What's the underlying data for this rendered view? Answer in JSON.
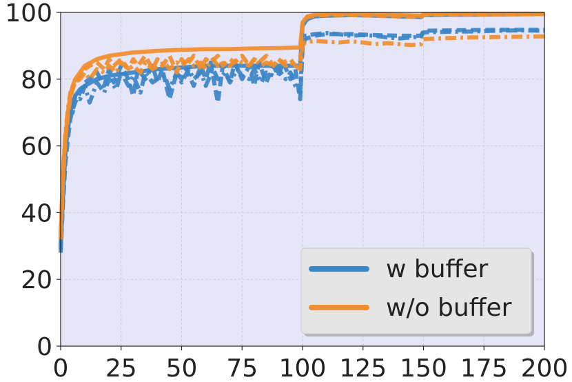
{
  "chart_data": {
    "type": "line",
    "title": "",
    "xlabel": "",
    "ylabel": "",
    "xlim": [
      0,
      200
    ],
    "ylim": [
      0,
      100
    ],
    "x_ticks": [
      "0",
      "25",
      "50",
      "75",
      "100",
      "125",
      "150",
      "175",
      "200"
    ],
    "y_ticks": [
      "0",
      "20",
      "40",
      "60",
      "80",
      "100"
    ],
    "grid": true,
    "legend_position": "lower-right",
    "colors": {
      "w_buffer": "#3b86c6",
      "wo_buffer": "#f28e2b",
      "plot_background": "#e6e6f8",
      "legend_background": "#e5e5e5"
    },
    "legend": [
      {
        "label": "w buffer",
        "color": "#3b86c6"
      },
      {
        "label": "w/o buffer",
        "color": "#f28e2b"
      }
    ],
    "series": [
      {
        "group": "w buffer",
        "style": "solid",
        "points": [
          [
            0,
            29
          ],
          [
            1,
            45
          ],
          [
            2,
            58
          ],
          [
            3,
            65
          ],
          [
            4,
            70
          ],
          [
            5,
            73
          ],
          [
            6,
            75
          ],
          [
            8,
            77
          ],
          [
            10,
            78
          ],
          [
            15,
            80
          ],
          [
            20,
            81
          ],
          [
            30,
            82
          ],
          [
            40,
            83
          ],
          [
            50,
            83.5
          ],
          [
            60,
            84
          ],
          [
            70,
            84
          ],
          [
            80,
            84
          ],
          [
            90,
            84
          ],
          [
            95,
            84
          ],
          [
            99,
            84
          ],
          [
            100,
            96
          ],
          [
            102,
            98
          ],
          [
            105,
            98.8
          ],
          [
            110,
            99
          ],
          [
            120,
            99.2
          ],
          [
            130,
            99
          ],
          [
            140,
            98.8
          ],
          [
            149,
            98.6
          ],
          [
            150,
            99.2
          ],
          [
            160,
            99.3
          ],
          [
            180,
            99.4
          ],
          [
            200,
            99.5
          ]
        ]
      },
      {
        "group": "w buffer",
        "style": "dashdot",
        "points": [
          [
            0,
            30
          ],
          [
            1,
            48
          ],
          [
            2,
            60
          ],
          [
            3,
            66
          ],
          [
            4,
            72
          ],
          [
            5,
            70
          ],
          [
            6,
            75
          ],
          [
            8,
            74
          ],
          [
            10,
            78
          ],
          [
            12,
            73
          ],
          [
            15,
            79
          ],
          [
            18,
            76
          ],
          [
            20,
            80
          ],
          [
            23,
            77
          ],
          [
            25,
            82
          ],
          [
            28,
            78
          ],
          [
            30,
            81
          ],
          [
            33,
            76
          ],
          [
            35,
            82
          ],
          [
            38,
            79
          ],
          [
            40,
            80
          ],
          [
            43,
            81
          ],
          [
            45,
            77
          ],
          [
            48,
            82
          ],
          [
            50,
            79
          ],
          [
            53,
            83
          ],
          [
            55,
            80
          ],
          [
            58,
            82
          ],
          [
            60,
            78
          ],
          [
            63,
            83
          ],
          [
            65,
            80
          ],
          [
            68,
            82
          ],
          [
            70,
            79
          ],
          [
            73,
            83
          ],
          [
            75,
            81
          ],
          [
            78,
            80
          ],
          [
            80,
            83
          ],
          [
            83,
            79
          ],
          [
            85,
            82
          ],
          [
            88,
            81
          ],
          [
            90,
            83
          ],
          [
            93,
            80
          ],
          [
            95,
            82
          ],
          [
            97,
            78
          ],
          [
            99,
            76
          ],
          [
            100,
            90
          ],
          [
            101,
            93
          ],
          [
            105,
            93.5
          ],
          [
            110,
            93.8
          ],
          [
            115,
            93.5
          ],
          [
            120,
            93
          ],
          [
            125,
            93.2
          ],
          [
            130,
            93
          ],
          [
            135,
            92.5
          ],
          [
            140,
            92.2
          ],
          [
            145,
            92.5
          ],
          [
            149,
            92.8
          ],
          [
            150,
            94
          ],
          [
            160,
            94.2
          ],
          [
            170,
            94.3
          ],
          [
            180,
            94.5
          ],
          [
            190,
            94.6
          ],
          [
            200,
            94.5
          ]
        ]
      },
      {
        "group": "w buffer",
        "style": "dashed",
        "points": [
          [
            0,
            28
          ],
          [
            1,
            43
          ],
          [
            2,
            55
          ],
          [
            3,
            62
          ],
          [
            4,
            68
          ],
          [
            5,
            71
          ],
          [
            6,
            73
          ],
          [
            8,
            76
          ],
          [
            10,
            79
          ],
          [
            12,
            80
          ],
          [
            15,
            82
          ],
          [
            18,
            78
          ],
          [
            20,
            83
          ],
          [
            22,
            79
          ],
          [
            25,
            84
          ],
          [
            28,
            80
          ],
          [
            30,
            75
          ],
          [
            32,
            83
          ],
          [
            35,
            80
          ],
          [
            38,
            84
          ],
          [
            40,
            79
          ],
          [
            42,
            83
          ],
          [
            45,
            74
          ],
          [
            48,
            82
          ],
          [
            50,
            80
          ],
          [
            52,
            83
          ],
          [
            55,
            78
          ],
          [
            58,
            84
          ],
          [
            60,
            80
          ],
          [
            62,
            85
          ],
          [
            65,
            73
          ],
          [
            67,
            84
          ],
          [
            70,
            79
          ],
          [
            72,
            85
          ],
          [
            75,
            80
          ],
          [
            78,
            84
          ],
          [
            80,
            78
          ],
          [
            82,
            85
          ],
          [
            85,
            79
          ],
          [
            88,
            84
          ],
          [
            90,
            81
          ],
          [
            92,
            85
          ],
          [
            95,
            80
          ],
          [
            97,
            83
          ],
          [
            99,
            74
          ],
          [
            100,
            89
          ],
          [
            101,
            92
          ],
          [
            105,
            93
          ],
          [
            110,
            93.5
          ],
          [
            120,
            93.5
          ],
          [
            130,
            93.2
          ],
          [
            140,
            93
          ],
          [
            149,
            93
          ],
          [
            150,
            94.5
          ],
          [
            160,
            94.6
          ],
          [
            180,
            94.8
          ],
          [
            200,
            94.8
          ]
        ]
      },
      {
        "group": "w/o buffer",
        "style": "solid",
        "points": [
          [
            0,
            33
          ],
          [
            1,
            52
          ],
          [
            2,
            63
          ],
          [
            3,
            70
          ],
          [
            4,
            75
          ],
          [
            5,
            78
          ],
          [
            6,
            80
          ],
          [
            8,
            82
          ],
          [
            10,
            84
          ],
          [
            15,
            86
          ],
          [
            20,
            87
          ],
          [
            30,
            88
          ],
          [
            40,
            88.5
          ],
          [
            50,
            88.8
          ],
          [
            60,
            89
          ],
          [
            70,
            89
          ],
          [
            80,
            89.2
          ],
          [
            90,
            89.3
          ],
          [
            99,
            89.5
          ],
          [
            100,
            97
          ],
          [
            102,
            98.8
          ],
          [
            105,
            99.3
          ],
          [
            110,
            99.5
          ],
          [
            120,
            99.5
          ],
          [
            130,
            99.3
          ],
          [
            140,
            99.2
          ],
          [
            149,
            99
          ],
          [
            150,
            99.5
          ],
          [
            160,
            99.6
          ],
          [
            180,
            99.6
          ],
          [
            200,
            99.6
          ]
        ]
      },
      {
        "group": "w/o buffer",
        "style": "dashdot",
        "points": [
          [
            0,
            34
          ],
          [
            1,
            53
          ],
          [
            2,
            64
          ],
          [
            3,
            71
          ],
          [
            4,
            76
          ],
          [
            5,
            77
          ],
          [
            6,
            79
          ],
          [
            8,
            80
          ],
          [
            10,
            82
          ],
          [
            12,
            80
          ],
          [
            15,
            83
          ],
          [
            18,
            82
          ],
          [
            20,
            84
          ],
          [
            23,
            82
          ],
          [
            25,
            85
          ],
          [
            28,
            83
          ],
          [
            30,
            84
          ],
          [
            33,
            82
          ],
          [
            35,
            85
          ],
          [
            38,
            83
          ],
          [
            40,
            84
          ],
          [
            43,
            85
          ],
          [
            45,
            83
          ],
          [
            48,
            85
          ],
          [
            50,
            84
          ],
          [
            53,
            86
          ],
          [
            55,
            84
          ],
          [
            58,
            85
          ],
          [
            60,
            83
          ],
          [
            63,
            86
          ],
          [
            65,
            84
          ],
          [
            68,
            85
          ],
          [
            70,
            84
          ],
          [
            73,
            86
          ],
          [
            75,
            85
          ],
          [
            78,
            84
          ],
          [
            80,
            86
          ],
          [
            83,
            84
          ],
          [
            85,
            85
          ],
          [
            88,
            84
          ],
          [
            90,
            86
          ],
          [
            93,
            84
          ],
          [
            95,
            85
          ],
          [
            97,
            84
          ],
          [
            99,
            83
          ],
          [
            100,
            90
          ],
          [
            101,
            91
          ],
          [
            105,
            91.5
          ],
          [
            110,
            91.2
          ],
          [
            115,
            91
          ],
          [
            120,
            91.3
          ],
          [
            125,
            91
          ],
          [
            130,
            90.5
          ],
          [
            135,
            90.8
          ],
          [
            140,
            90.5
          ],
          [
            145,
            90.2
          ],
          [
            149,
            90.5
          ],
          [
            150,
            92
          ],
          [
            160,
            92.3
          ],
          [
            170,
            92.5
          ],
          [
            180,
            92.6
          ],
          [
            190,
            92.7
          ],
          [
            200,
            92.8
          ]
        ]
      },
      {
        "group": "w/o buffer",
        "style": "dashed",
        "points": [
          [
            0,
            32
          ],
          [
            1,
            50
          ],
          [
            2,
            62
          ],
          [
            3,
            69
          ],
          [
            4,
            74
          ],
          [
            5,
            77
          ],
          [
            6,
            79
          ],
          [
            8,
            81
          ],
          [
            10,
            83
          ],
          [
            12,
            84
          ],
          [
            15,
            85
          ],
          [
            18,
            83
          ],
          [
            20,
            86
          ],
          [
            22,
            84
          ],
          [
            25,
            86
          ],
          [
            28,
            83
          ],
          [
            30,
            86
          ],
          [
            32,
            84
          ],
          [
            35,
            87
          ],
          [
            38,
            83
          ],
          [
            40,
            86
          ],
          [
            42,
            84
          ],
          [
            45,
            87
          ],
          [
            48,
            82
          ],
          [
            50,
            86
          ],
          [
            52,
            84
          ],
          [
            55,
            87
          ],
          [
            58,
            83
          ],
          [
            60,
            86
          ],
          [
            62,
            85
          ],
          [
            65,
            87
          ],
          [
            67,
            84
          ],
          [
            70,
            86
          ],
          [
            72,
            85
          ],
          [
            75,
            87
          ],
          [
            78,
            84
          ],
          [
            80,
            86
          ],
          [
            82,
            85
          ],
          [
            85,
            87
          ],
          [
            88,
            84
          ],
          [
            90,
            86
          ],
          [
            92,
            85
          ],
          [
            95,
            86
          ],
          [
            97,
            84
          ],
          [
            99,
            85
          ],
          [
            100,
            97
          ],
          [
            102,
            98.6
          ],
          [
            105,
            99
          ],
          [
            110,
            99.2
          ],
          [
            120,
            99.2
          ],
          [
            130,
            99
          ],
          [
            140,
            98.8
          ],
          [
            149,
            98.7
          ],
          [
            150,
            99.3
          ],
          [
            160,
            99.4
          ],
          [
            180,
            99.5
          ],
          [
            200,
            99.5
          ]
        ]
      }
    ]
  }
}
